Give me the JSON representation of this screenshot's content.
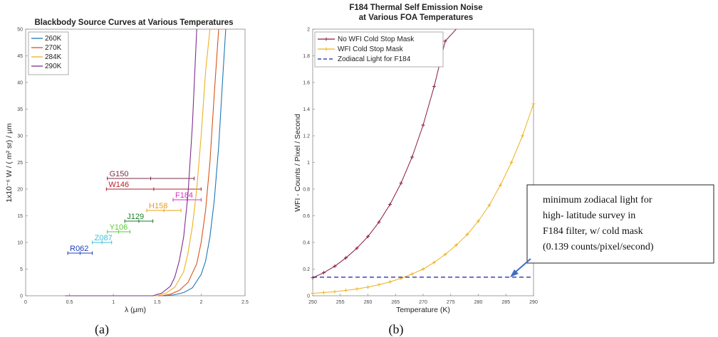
{
  "chart_data": [
    {
      "type": "line",
      "title": "Blackbody Source Curves at Various Temperatures",
      "xlabel": "λ (μm)",
      "ylabel": "1x10⁻⁶  W / ( m² sr) / μm",
      "xlim": [
        0,
        2.5
      ],
      "ylim": [
        0,
        50
      ],
      "xticks": [
        "0",
        "0.5",
        "1",
        "1.5",
        "2",
        "2.5"
      ],
      "yticks": [
        "0",
        "5",
        "10",
        "15",
        "20",
        "25",
        "30",
        "35",
        "40",
        "45",
        "50"
      ],
      "grid": false,
      "legend_position": "top-left",
      "series": [
        {
          "name": "260K",
          "color": "#1f77b4",
          "x": [
            1.6,
            1.7,
            1.8,
            1.9,
            2.0,
            2.05,
            2.1,
            2.15,
            2.2,
            2.25,
            2.28
          ],
          "y": [
            0,
            0.2,
            0.6,
            1.5,
            4,
            6.5,
            11,
            18,
            28,
            42,
            50
          ]
        },
        {
          "name": "270K",
          "color": "#d95319",
          "x": [
            1.55,
            1.65,
            1.75,
            1.85,
            1.95,
            2.0,
            2.05,
            2.1,
            2.15,
            2.2
          ],
          "y": [
            0,
            0.3,
            1,
            2.5,
            6,
            10,
            16,
            25,
            38,
            50
          ]
        },
        {
          "name": "284K",
          "color": "#edb120",
          "x": [
            1.5,
            1.6,
            1.7,
            1.8,
            1.85,
            1.9,
            1.95,
            2.0,
            2.05,
            2.1
          ],
          "y": [
            0,
            0.5,
            1.6,
            4.5,
            8,
            13,
            20,
            30,
            42,
            50
          ]
        },
        {
          "name": "290K",
          "color": "#7e2f8e",
          "x": [
            1.45,
            1.55,
            1.65,
            1.7,
            1.75,
            1.8,
            1.85,
            1.9,
            1.95
          ],
          "y": [
            0,
            0.5,
            1.8,
            3.5,
            6.5,
            11,
            19,
            32,
            50
          ]
        }
      ],
      "filters": [
        {
          "label": "G150",
          "color": "#7a2e4a",
          "xmin": 0.93,
          "xmax": 1.92,
          "y": 22
        },
        {
          "label": "W146",
          "color": "#b5202a",
          "xmin": 0.92,
          "xmax": 2.0,
          "y": 20
        },
        {
          "label": "F184",
          "color": "#d62fc6",
          "xmin": 1.68,
          "xmax": 2.0,
          "y": 18
        },
        {
          "label": "H158",
          "color": "#e8a015",
          "xmin": 1.38,
          "xmax": 1.77,
          "y": 16
        },
        {
          "label": "J129",
          "color": "#1d7a2a",
          "xmin": 1.13,
          "xmax": 1.45,
          "y": 14
        },
        {
          "label": "Y106",
          "color": "#5acb3a",
          "xmin": 0.93,
          "xmax": 1.19,
          "y": 12
        },
        {
          "label": "Z087",
          "color": "#3cc1d6",
          "xmin": 0.76,
          "xmax": 0.98,
          "y": 10
        },
        {
          "label": "R062",
          "color": "#2040b8",
          "xmin": 0.48,
          "xmax": 0.76,
          "y": 8
        }
      ],
      "caption": "(a)"
    },
    {
      "type": "line",
      "title": "F184 Thermal Self Emission Noise",
      "subtitle": "at Various FOA Temperatures",
      "xlabel": "Temperature (K)",
      "ylabel": "WFI - Counts / Pixel / Second",
      "xlim": [
        250,
        290
      ],
      "ylim": [
        0,
        2
      ],
      "xticks": [
        "250",
        "255",
        "260",
        "265",
        "270",
        "275",
        "280",
        "285",
        "290"
      ],
      "yticks": [
        "0",
        "0.2",
        "0.4",
        "0.6",
        "0.8",
        "1",
        "1.2",
        "1.4",
        "1.6",
        "1.8",
        "2"
      ],
      "grid": false,
      "legend_position": "top-left",
      "series": [
        {
          "name": "No WFI Cold Stop Mask",
          "color": "#8b1a3c",
          "marker": "+",
          "x": [
            250,
            252,
            254,
            256,
            258,
            260,
            262,
            264,
            266,
            268,
            270,
            272,
            274,
            276
          ],
          "y": [
            0.135,
            0.173,
            0.222,
            0.284,
            0.357,
            0.444,
            0.553,
            0.685,
            0.845,
            1.04,
            1.28,
            1.57,
            1.91,
            2.3
          ]
        },
        {
          "name": "WFI Cold Stop Mask",
          "color": "#edb120",
          "marker": "+",
          "x": [
            250,
            252,
            254,
            256,
            258,
            260,
            262,
            264,
            266,
            268,
            270,
            272,
            274,
            276,
            278,
            280,
            282,
            284,
            286,
            288,
            290
          ],
          "y": [
            0.018,
            0.024,
            0.031,
            0.04,
            0.051,
            0.065,
            0.083,
            0.104,
            0.131,
            0.163,
            0.2,
            0.25,
            0.31,
            0.38,
            0.46,
            0.56,
            0.68,
            0.83,
            1.0,
            1.2,
            1.44
          ]
        },
        {
          "name": "Zodiacal Light for F184",
          "color": "#1c1ca8",
          "dash": "6,4",
          "x": [
            250,
            290
          ],
          "y": [
            0.139,
            0.139
          ]
        }
      ],
      "annotation": {
        "lines": [
          "minimum zodiacal light for",
          "high- latitude survey in",
          "F184 filter, w/ cold mask",
          "(0.139 counts/pixel/second)"
        ]
      },
      "caption": "(b)"
    }
  ]
}
